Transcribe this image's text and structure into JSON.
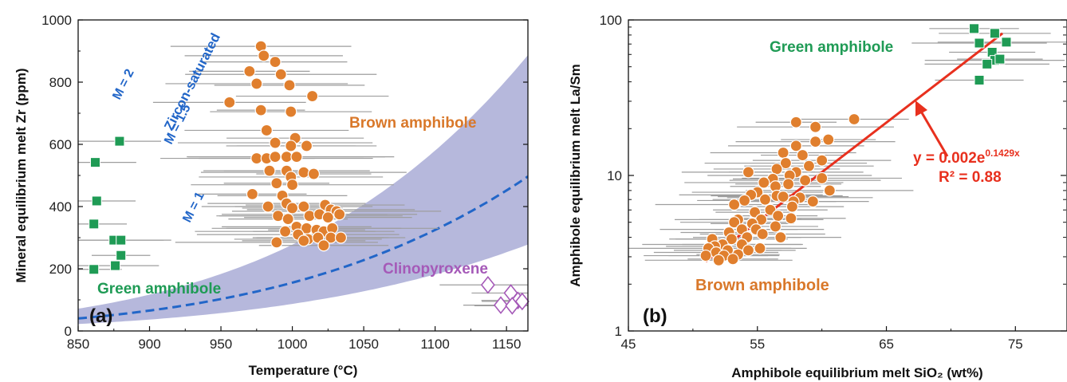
{
  "figure": {
    "panel_a_label": "(a)",
    "panel_b_label": "(b)"
  },
  "colors": {
    "brown": "#e07f2e",
    "brown_text": "#d9782a",
    "green": "#1f9b55",
    "green_text": "#1f9b55",
    "purple": "#a55ab8",
    "blue_line": "#2266c8",
    "band": "#a9acd6",
    "error_bar": "#9e9e9e",
    "fit_line": "#e8301e"
  },
  "chart_data": [
    {
      "type": "scatter",
      "panel": "(a)",
      "xlabel": "Temperature (°C)",
      "ylabel": "Mineral equilibrium melt Zr (ppm)",
      "xlim": [
        850,
        1165
      ],
      "ylim": [
        0,
        1000
      ],
      "xticks": [
        850,
        900,
        950,
        1000,
        1050,
        1100,
        1150
      ],
      "yticks": [
        0,
        200,
        400,
        600,
        800,
        1000
      ],
      "annotations": {
        "zircon_saturated": "Zircon-saturated",
        "m2": "M = 2",
        "m15": "M = 1.5",
        "m1": "M = 1"
      },
      "series": [
        {
          "name": "Brown amphibole",
          "marker": "circle",
          "points": [
            [
              978,
              915
            ],
            [
              980,
              885
            ],
            [
              988,
              865
            ],
            [
              970,
              835
            ],
            [
              992,
              825
            ],
            [
              975,
              795
            ],
            [
              998,
              790
            ],
            [
              956,
              735
            ],
            [
              1014,
              755
            ],
            [
              978,
              710
            ],
            [
              999,
              705
            ],
            [
              982,
              645
            ],
            [
              1002,
              620
            ],
            [
              988,
              605
            ],
            [
              999,
              595
            ],
            [
              1010,
              595
            ],
            [
              975,
              555
            ],
            [
              982,
              555
            ],
            [
              988,
              560
            ],
            [
              996,
              560
            ],
            [
              1003,
              560
            ],
            [
              984,
              515
            ],
            [
              996,
              515
            ],
            [
              1008,
              510
            ],
            [
              1015,
              505
            ],
            [
              999,
              495
            ],
            [
              989,
              475
            ],
            [
              1000,
              470
            ],
            [
              972,
              440
            ],
            [
              993,
              435
            ],
            [
              996,
              410
            ],
            [
              983,
              400
            ],
            [
              1008,
              400
            ],
            [
              1023,
              405
            ],
            [
              1000,
              395
            ],
            [
              1027,
              390
            ],
            [
              1031,
              385
            ],
            [
              990,
              370
            ],
            [
              997,
              360
            ],
            [
              1012,
              370
            ],
            [
              1019,
              375
            ],
            [
              1025,
              365
            ],
            [
              1033,
              375
            ],
            [
              1003,
              335
            ],
            [
              1010,
              330
            ],
            [
              995,
              320
            ],
            [
              1017,
              325
            ],
            [
              1022,
              320
            ],
            [
              1028,
              330
            ],
            [
              1004,
              310
            ],
            [
              1011,
              295
            ],
            [
              1018,
              300
            ],
            [
              1027,
              300
            ],
            [
              1034,
              300
            ],
            [
              989,
              285
            ],
            [
              1008,
              290
            ],
            [
              1022,
              275
            ]
          ]
        },
        {
          "name": "Green amphibole",
          "marker": "square",
          "points": [
            [
              879,
              610
            ],
            [
              862,
              542
            ],
            [
              863,
              418
            ],
            [
              861,
              344
            ],
            [
              875,
              292
            ],
            [
              880,
              292
            ],
            [
              880,
              243
            ],
            [
              876,
              210
            ],
            [
              861,
              198
            ]
          ]
        },
        {
          "name": "Clinopyroxene",
          "marker": "diamond",
          "points": [
            [
              1137,
              148
            ],
            [
              1153,
              122
            ],
            [
              1158,
              98
            ],
            [
              1161,
              95
            ],
            [
              1146,
              83
            ],
            [
              1154,
              81
            ]
          ]
        }
      ],
      "series_labels": {
        "brown": "Brown amphibole",
        "green": "Green amphibole",
        "cpx": "Clinopyroxene"
      }
    },
    {
      "type": "scatter",
      "panel": "(b)",
      "xlabel": "Amphibole equilibrium melt SiO₂ (wt%)",
      "ylabel": "Amphibole equilibrium melt La/Sm",
      "xlim": [
        45,
        79
      ],
      "ylim": [
        1,
        100
      ],
      "yscale": "log",
      "xticks": [
        45,
        55,
        65,
        75
      ],
      "yticks": [
        1,
        10,
        100
      ],
      "fit": {
        "equation_main": "y = 0.002e",
        "equation_exp": "0.1429x",
        "r2": "R² = 0.88",
        "line": [
          [
            51,
            2.8
          ],
          [
            74,
            82
          ]
        ]
      },
      "series": [
        {
          "name": "Brown amphibole",
          "marker": "circle",
          "points": [
            [
              58,
              22
            ],
            [
              62.5,
              23
            ],
            [
              59.5,
              20.5
            ],
            [
              60.5,
              17
            ],
            [
              59.5,
              16.5
            ],
            [
              58,
              15.5
            ],
            [
              57,
              14
            ],
            [
              58.5,
              13.5
            ],
            [
              60,
              12.5
            ],
            [
              57.2,
              12
            ],
            [
              59,
              11.5
            ],
            [
              56.5,
              11
            ],
            [
              58,
              10.5
            ],
            [
              54.3,
              10.5
            ],
            [
              57.5,
              10
            ],
            [
              60,
              9.6
            ],
            [
              56.2,
              9.5
            ],
            [
              58.7,
              9.3
            ],
            [
              55.5,
              9
            ],
            [
              57.4,
              8.8
            ],
            [
              56.4,
              8.5
            ],
            [
              60.6,
              8
            ],
            [
              55,
              7.8
            ],
            [
              54.5,
              7.5
            ],
            [
              56.5,
              7.4
            ],
            [
              58.3,
              7.2
            ],
            [
              57,
              7.3
            ],
            [
              55.6,
              7
            ],
            [
              54,
              6.9
            ],
            [
              57.8,
              6.8
            ],
            [
              59.3,
              6.8
            ],
            [
              53.2,
              6.5
            ],
            [
              56,
              6
            ],
            [
              57.7,
              6.3
            ],
            [
              54.8,
              5.8
            ],
            [
              56.6,
              5.5
            ],
            [
              53.5,
              5.2
            ],
            [
              55.3,
              5.2
            ],
            [
              57.6,
              5.3
            ],
            [
              53.2,
              5
            ],
            [
              54.6,
              4.9
            ],
            [
              56.4,
              4.7
            ],
            [
              53.8,
              4.5
            ],
            [
              54.9,
              4.5
            ],
            [
              52.8,
              4.3
            ],
            [
              55.4,
              4.2
            ],
            [
              56.8,
              4
            ],
            [
              54.2,
              4
            ],
            [
              51.5,
              3.9
            ],
            [
              53,
              3.9
            ],
            [
              52.3,
              3.6
            ],
            [
              53.8,
              3.6
            ],
            [
              51.7,
              3.5
            ],
            [
              55.2,
              3.4
            ],
            [
              51.2,
              3.4
            ],
            [
              52.7,
              3.3
            ],
            [
              54.3,
              3.3
            ],
            [
              51.8,
              3.2
            ],
            [
              53.5,
              3.1
            ],
            [
              51,
              3.05
            ],
            [
              52.4,
              3.05
            ],
            [
              53.1,
              2.9
            ],
            [
              52,
              2.85
            ]
          ]
        },
        {
          "name": "Green amphibole",
          "marker": "square",
          "points": [
            [
              71.8,
              88
            ],
            [
              73.4,
              82
            ],
            [
              72.2,
              71
            ],
            [
              74.3,
              72
            ],
            [
              73.2,
              62
            ],
            [
              73.4,
              55
            ],
            [
              72.8,
              52
            ],
            [
              73.8,
              56
            ],
            [
              72.2,
              41
            ]
          ]
        }
      ],
      "series_labels": {
        "green": "Green amphibole",
        "brown": "Brown amphibole"
      }
    }
  ]
}
